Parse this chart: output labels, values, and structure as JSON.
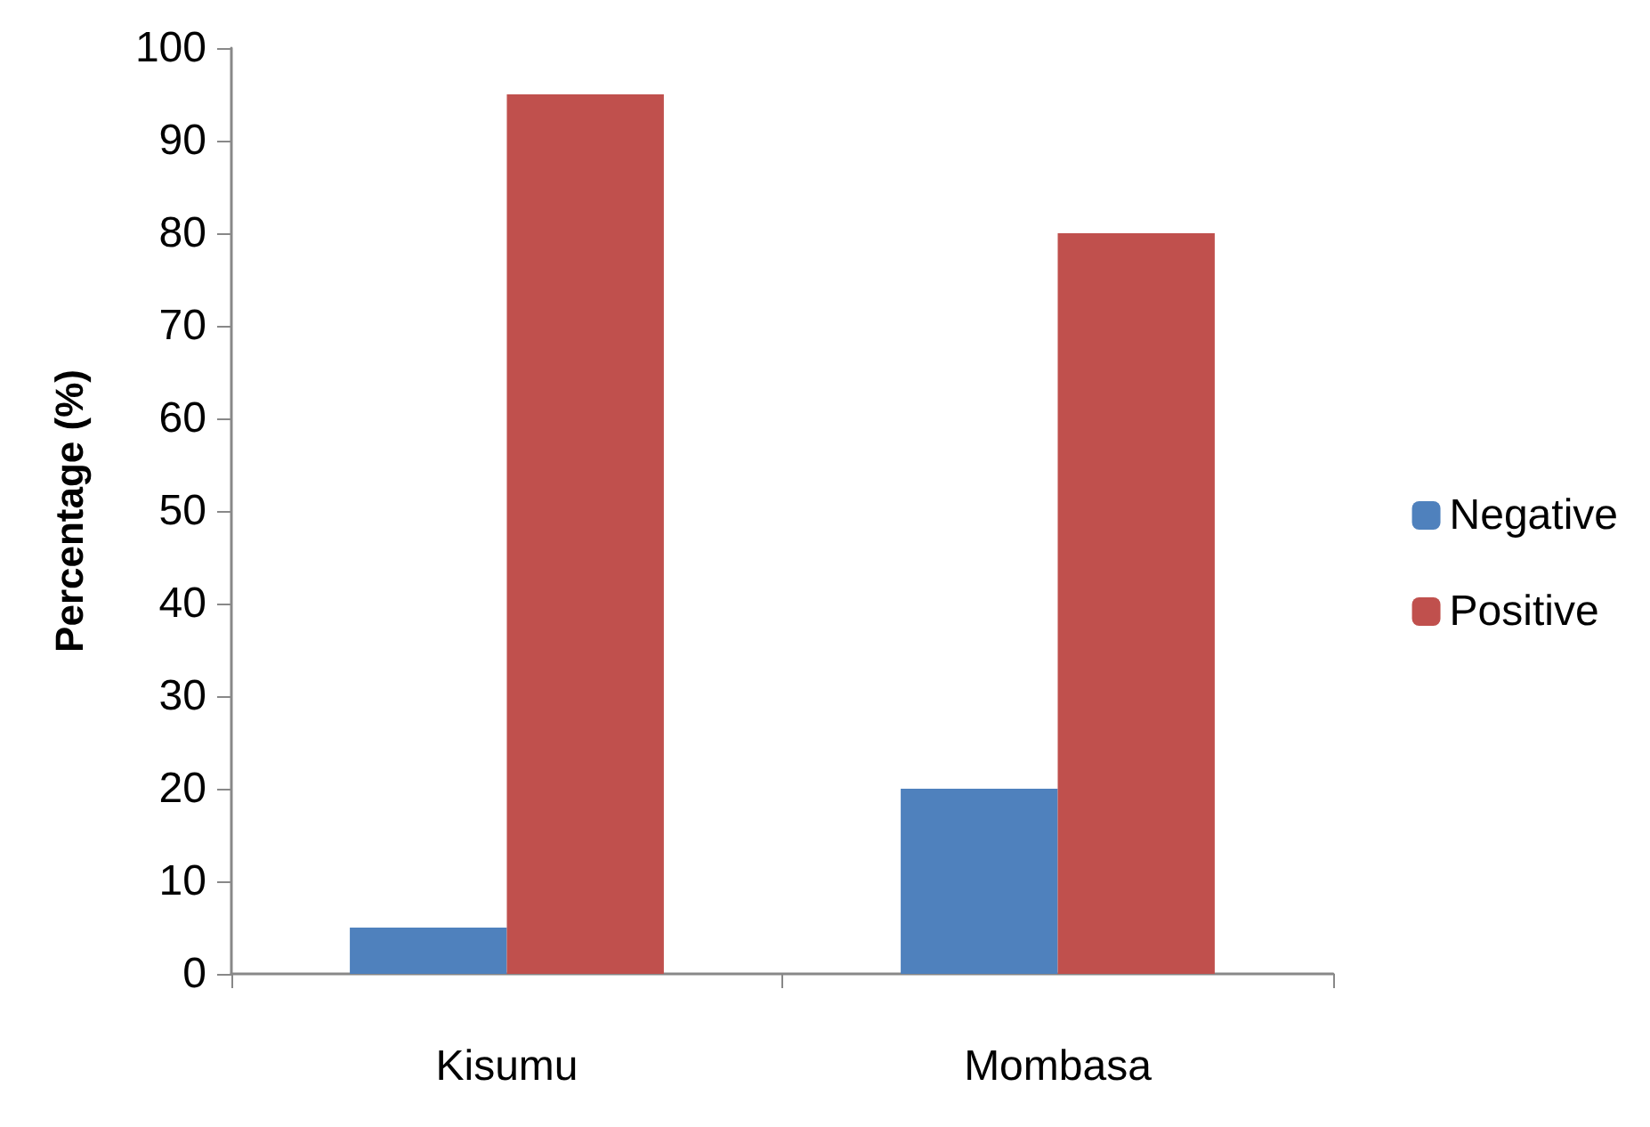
{
  "chart_data": {
    "type": "bar",
    "ylabel": "Percentage (%)",
    "categories": [
      "Kisumu",
      "Mombasa"
    ],
    "series": [
      {
        "name": "Negative",
        "color": "#4f81bd",
        "values": [
          5,
          20
        ]
      },
      {
        "name": "Positive",
        "color": "#c0504d",
        "values": [
          95,
          80
        ]
      }
    ],
    "ylim": [
      0,
      100
    ],
    "yticks": [
      0,
      10,
      20,
      30,
      40,
      50,
      60,
      70,
      80,
      90,
      100
    ],
    "grid": false,
    "legend": "right"
  }
}
